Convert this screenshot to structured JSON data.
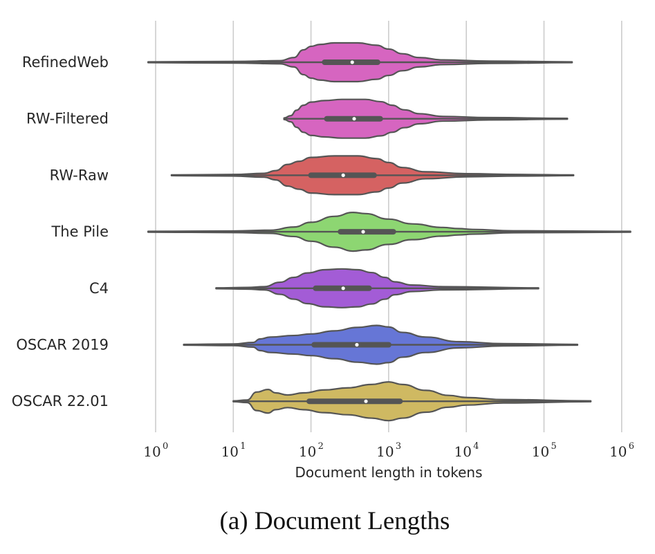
{
  "chart_data": {
    "type": "violin",
    "orientation": "horizontal",
    "xscale": "log",
    "xlim": [
      0.75,
      1600000
    ],
    "xlabel": "Document length in tokens",
    "xticks": [
      {
        "base": "10",
        "exp": "0",
        "value": 1
      },
      {
        "base": "10",
        "exp": "1",
        "value": 10
      },
      {
        "base": "10",
        "exp": "2",
        "value": 100
      },
      {
        "base": "10",
        "exp": "3",
        "value": 1000
      },
      {
        "base": "10",
        "exp": "4",
        "value": 10000
      },
      {
        "base": "10",
        "exp": "5",
        "value": 100000
      },
      {
        "base": "10",
        "exp": "6",
        "value": 1000000
      }
    ],
    "grid": "vertical",
    "caption": "(a) Document Lengths",
    "series": [
      {
        "name": "RefinedWeb",
        "color": "#d665c0",
        "min": 0.8,
        "max": 230000,
        "q1": 150,
        "median": 340,
        "q3": 720,
        "density": [
          [
            0.8,
            0.1
          ],
          [
            10,
            0.2
          ],
          [
            40,
            0.4
          ],
          [
            60,
            1.2
          ],
          [
            80,
            3.2
          ],
          [
            100,
            4.1
          ],
          [
            130,
            4.6
          ],
          [
            200,
            5.0
          ],
          [
            400,
            5.0
          ],
          [
            700,
            4.4
          ],
          [
            1000,
            3.4
          ],
          [
            1500,
            2.2
          ],
          [
            2500,
            1.2
          ],
          [
            5000,
            0.6
          ],
          [
            20000,
            0.3
          ],
          [
            230000,
            0.1
          ]
        ]
      },
      {
        "name": "RW-Filtered",
        "color": "#d665c0",
        "min": 45,
        "max": 200000,
        "q1": 160,
        "median": 360,
        "q3": 780,
        "density": [
          [
            45,
            0.2
          ],
          [
            55,
            0.8
          ],
          [
            65,
            2.2
          ],
          [
            80,
            3.5
          ],
          [
            100,
            4.3
          ],
          [
            150,
            4.7
          ],
          [
            250,
            5.0
          ],
          [
            500,
            5.0
          ],
          [
            800,
            4.4
          ],
          [
            1100,
            3.5
          ],
          [
            1600,
            2.3
          ],
          [
            2500,
            1.3
          ],
          [
            5000,
            0.6
          ],
          [
            20000,
            0.3
          ],
          [
            200000,
            0.1
          ]
        ]
      },
      {
        "name": "RW-Raw",
        "color": "#d56262",
        "min": 1.6,
        "max": 240000,
        "q1": 100,
        "median": 260,
        "q3": 650,
        "density": [
          [
            1.6,
            0.1
          ],
          [
            10,
            0.2
          ],
          [
            25,
            0.5
          ],
          [
            35,
            1.2
          ],
          [
            50,
            2.8
          ],
          [
            70,
            3.6
          ],
          [
            100,
            4.6
          ],
          [
            200,
            5.0
          ],
          [
            400,
            5.0
          ],
          [
            700,
            4.3
          ],
          [
            1000,
            3.3
          ],
          [
            1500,
            2.0
          ],
          [
            3000,
            0.9
          ],
          [
            10000,
            0.4
          ],
          [
            50000,
            0.2
          ],
          [
            240000,
            0.1
          ]
        ]
      },
      {
        "name": "The Pile",
        "color": "#8dd672",
        "min": 0.8,
        "max": 1300000,
        "q1": 240,
        "median": 470,
        "q3": 1150,
        "density": [
          [
            0.8,
            0.1
          ],
          [
            10,
            0.2
          ],
          [
            30,
            0.4
          ],
          [
            60,
            1.2
          ],
          [
            100,
            2.4
          ],
          [
            200,
            3.9
          ],
          [
            350,
            4.9
          ],
          [
            500,
            4.6
          ],
          [
            1000,
            3.2
          ],
          [
            2000,
            2.0
          ],
          [
            5000,
            1.1
          ],
          [
            8000,
            0.8
          ],
          [
            12000,
            0.6
          ],
          [
            40000,
            0.25
          ],
          [
            1300000,
            0.1
          ]
        ]
      },
      {
        "name": "C4",
        "color": "#a35cd6",
        "min": 6,
        "max": 85000,
        "q1": 115,
        "median": 260,
        "q3": 560,
        "density": [
          [
            6,
            0.1
          ],
          [
            15,
            0.2
          ],
          [
            25,
            0.4
          ],
          [
            40,
            1.5
          ],
          [
            60,
            2.7
          ],
          [
            90,
            3.8
          ],
          [
            150,
            4.6
          ],
          [
            250,
            4.8
          ],
          [
            400,
            4.6
          ],
          [
            600,
            3.9
          ],
          [
            900,
            2.7
          ],
          [
            1200,
            1.6
          ],
          [
            2000,
            0.8
          ],
          [
            5000,
            0.4
          ],
          [
            85000,
            0.1
          ]
        ]
      },
      {
        "name": "OSCAR 2019",
        "color": "#6676d6",
        "min": 2.3,
        "max": 270000,
        "q1": 110,
        "median": 390,
        "q3": 1000,
        "density": [
          [
            2.3,
            0.1
          ],
          [
            10,
            0.2
          ],
          [
            18,
            0.6
          ],
          [
            22,
            1.5
          ],
          [
            30,
            2.0
          ],
          [
            60,
            2.4
          ],
          [
            100,
            2.8
          ],
          [
            200,
            3.6
          ],
          [
            400,
            4.5
          ],
          [
            700,
            5.0
          ],
          [
            1000,
            4.6
          ],
          [
            1500,
            3.2
          ],
          [
            3000,
            2.0
          ],
          [
            8000,
            0.8
          ],
          [
            30000,
            0.3
          ],
          [
            270000,
            0.1
          ]
        ]
      },
      {
        "name": "OSCAR 22.01",
        "color": "#cfb962",
        "min": 10,
        "max": 400000,
        "q1": 95,
        "median": 510,
        "q3": 1400,
        "density": [
          [
            10,
            0.1
          ],
          [
            15,
            0.3
          ],
          [
            20,
            2.2
          ],
          [
            28,
            2.8
          ],
          [
            35,
            2.0
          ],
          [
            50,
            1.5
          ],
          [
            80,
            2.0
          ],
          [
            150,
            2.7
          ],
          [
            300,
            3.2
          ],
          [
            600,
            4.0
          ],
          [
            1000,
            4.6
          ],
          [
            1500,
            4.0
          ],
          [
            3000,
            2.6
          ],
          [
            6000,
            1.4
          ],
          [
            10000,
            0.9
          ],
          [
            30000,
            0.4
          ],
          [
            400000,
            0.1
          ]
        ]
      }
    ]
  }
}
